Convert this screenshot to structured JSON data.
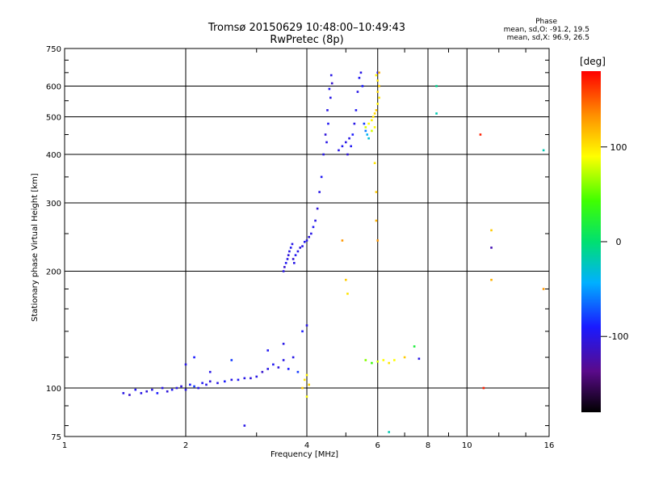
{
  "title": {
    "line1": "Tromsø 20150629 10:48:00–10:49:43",
    "line2": "RwPretec (8p)"
  },
  "stats": {
    "heading": "Phase",
    "o_line": "mean, sd,O: -91.2, 19.5",
    "x_line": "mean, sd,X: 96.9, 26.5"
  },
  "colorbar": {
    "title": "[deg]",
    "ticks": [
      {
        "value": 100,
        "label": "100"
      },
      {
        "value": 0,
        "label": "0"
      },
      {
        "value": -100,
        "label": "-100"
      }
    ],
    "range": [
      -180,
      180
    ]
  },
  "chart_data": {
    "type": "scatter",
    "xlabel": "Frequency [MHz]",
    "ylabel": "Stationary phase Virtual Height [km]",
    "x_scale": "log",
    "y_scale": "log",
    "xlim": [
      1,
      16
    ],
    "ylim": [
      75,
      750
    ],
    "x_ticks": [
      {
        "value": 1,
        "label": "1"
      },
      {
        "value": 2,
        "label": "2"
      },
      {
        "value": 4,
        "label": "4"
      },
      {
        "value": 6,
        "label": "6"
      },
      {
        "value": 8,
        "label": "8"
      },
      {
        "value": 10,
        "label": "10"
      },
      {
        "value": 16,
        "label": "16"
      }
    ],
    "y_ticks": [
      {
        "value": 75,
        "label": "75"
      },
      {
        "value": 100,
        "label": "100"
      },
      {
        "value": 200,
        "label": "200"
      },
      {
        "value": 300,
        "label": "300"
      },
      {
        "value": 400,
        "label": "400"
      },
      {
        "value": 500,
        "label": "500"
      },
      {
        "value": 600,
        "label": "600"
      },
      {
        "value": 750,
        "label": "750"
      }
    ],
    "grid": true,
    "colors": {
      "o_mode": "#1f3de0",
      "x_mode": "#f0d020"
    },
    "series": [
      {
        "mode": "O",
        "points": [
          [
            1.4,
            97,
            -100
          ],
          [
            1.45,
            96,
            -110
          ],
          [
            1.5,
            99,
            -95
          ],
          [
            1.55,
            97,
            -100
          ],
          [
            1.6,
            98,
            -105
          ],
          [
            1.65,
            99,
            -100
          ],
          [
            1.7,
            97,
            -90
          ],
          [
            1.75,
            100,
            -100
          ],
          [
            1.8,
            98,
            -105
          ],
          [
            1.85,
            99,
            -95
          ],
          [
            1.9,
            100,
            -100
          ],
          [
            1.95,
            101,
            -105
          ],
          [
            2.0,
            99,
            -100
          ],
          [
            2.05,
            102,
            -90
          ],
          [
            2.1,
            101,
            -80
          ],
          [
            2.15,
            100,
            -100
          ],
          [
            2.2,
            103,
            -95
          ],
          [
            2.25,
            102,
            -100
          ],
          [
            2.3,
            104,
            -105
          ],
          [
            2.4,
            103,
            -100
          ],
          [
            2.5,
            104,
            -90
          ],
          [
            2.6,
            105,
            -100
          ],
          [
            2.7,
            105,
            -95
          ],
          [
            2.8,
            106,
            -100
          ],
          [
            2.9,
            106,
            -105
          ],
          [
            3.0,
            107,
            -100
          ],
          [
            3.1,
            110,
            -110
          ],
          [
            3.2,
            112,
            -100
          ],
          [
            3.3,
            115,
            -95
          ],
          [
            3.4,
            113,
            -105
          ],
          [
            3.5,
            118,
            -100
          ],
          [
            3.6,
            112,
            -90
          ],
          [
            3.7,
            120,
            -100
          ],
          [
            3.8,
            110,
            -80
          ],
          [
            2.0,
            115,
            -100
          ],
          [
            2.1,
            120,
            -90
          ],
          [
            2.3,
            110,
            -100
          ],
          [
            2.6,
            118,
            -80
          ],
          [
            3.2,
            125,
            -95
          ],
          [
            3.5,
            130,
            -100
          ],
          [
            3.9,
            140,
            -90
          ],
          [
            4.0,
            145,
            -100
          ],
          [
            3.5,
            200,
            -100
          ],
          [
            3.52,
            205,
            -110
          ],
          [
            3.55,
            210,
            -95
          ],
          [
            3.58,
            215,
            -100
          ],
          [
            3.6,
            220,
            -105
          ],
          [
            3.62,
            225,
            -100
          ],
          [
            3.65,
            230,
            -95
          ],
          [
            3.68,
            235,
            -100
          ],
          [
            3.7,
            215,
            -110
          ],
          [
            3.72,
            210,
            -100
          ],
          [
            3.75,
            220,
            -95
          ],
          [
            3.8,
            225,
            -100
          ],
          [
            3.85,
            230,
            -105
          ],
          [
            3.9,
            232,
            -100
          ],
          [
            3.95,
            238,
            -95
          ],
          [
            4.0,
            240,
            -100
          ],
          [
            4.05,
            245,
            -105
          ],
          [
            4.1,
            250,
            -100
          ],
          [
            4.15,
            260,
            -95
          ],
          [
            4.2,
            270,
            -100
          ],
          [
            4.25,
            290,
            -105
          ],
          [
            4.3,
            320,
            -100
          ],
          [
            4.35,
            350,
            -95
          ],
          [
            4.4,
            400,
            -100
          ],
          [
            4.45,
            450,
            -105
          ],
          [
            4.5,
            520,
            -100
          ],
          [
            4.55,
            590,
            -95
          ],
          [
            4.6,
            640,
            -100
          ],
          [
            4.62,
            610,
            -110
          ],
          [
            4.58,
            560,
            -100
          ],
          [
            4.52,
            480,
            -95
          ],
          [
            4.48,
            430,
            -100
          ],
          [
            4.8,
            410,
            -100
          ],
          [
            4.9,
            420,
            -95
          ],
          [
            5.0,
            430,
            -100
          ],
          [
            5.05,
            400,
            -105
          ],
          [
            5.1,
            440,
            -100
          ],
          [
            5.15,
            420,
            -95
          ],
          [
            5.2,
            450,
            -90
          ],
          [
            5.25,
            480,
            -100
          ],
          [
            5.3,
            520,
            -95
          ],
          [
            5.35,
            580,
            -100
          ],
          [
            5.4,
            630,
            -95
          ],
          [
            5.45,
            650,
            -100
          ],
          [
            5.5,
            600,
            -90
          ],
          [
            5.55,
            480,
            -80
          ],
          [
            5.6,
            460,
            -60
          ],
          [
            5.65,
            450,
            -40
          ],
          [
            5.7,
            440,
            -30
          ],
          [
            6.0,
            650,
            -95
          ]
        ]
      },
      {
        "mode": "X",
        "points": [
          [
            3.9,
            100,
            110
          ],
          [
            3.95,
            105,
            100
          ],
          [
            4.0,
            108,
            95
          ],
          [
            4.05,
            102,
            105
          ],
          [
            4.0,
            95,
            90
          ],
          [
            4.9,
            240,
            130
          ],
          [
            5.0,
            190,
            110
          ],
          [
            5.05,
            175,
            100
          ],
          [
            5.6,
            470,
            80
          ],
          [
            5.7,
            480,
            90
          ],
          [
            5.8,
            490,
            95
          ],
          [
            5.85,
            500,
            100
          ],
          [
            5.9,
            510,
            105
          ],
          [
            5.95,
            520,
            110
          ],
          [
            6.0,
            540,
            95
          ],
          [
            6.05,
            560,
            100
          ],
          [
            6.0,
            580,
            105
          ],
          [
            6.05,
            600,
            110
          ],
          [
            6.0,
            620,
            100
          ],
          [
            5.95,
            640,
            95
          ],
          [
            6.05,
            650,
            120
          ],
          [
            5.9,
            470,
            90
          ],
          [
            5.8,
            460,
            80
          ],
          [
            5.9,
            380,
            100
          ],
          [
            5.95,
            320,
            110
          ],
          [
            5.95,
            270,
            120
          ],
          [
            6.0,
            240,
            130
          ],
          [
            5.6,
            118,
            60
          ],
          [
            5.8,
            116,
            40
          ],
          [
            6.0,
            117,
            80
          ],
          [
            6.2,
            118,
            90
          ],
          [
            6.4,
            116,
            100
          ],
          [
            6.6,
            118,
            90
          ],
          [
            7.0,
            120,
            110
          ],
          [
            7.4,
            128,
            20
          ],
          [
            7.6,
            119,
            -100
          ],
          [
            8.4,
            600,
            -10
          ],
          [
            8.4,
            510,
            -20
          ],
          [
            10.8,
            450,
            170
          ],
          [
            11.5,
            255,
            110
          ],
          [
            11.5,
            230,
            -120
          ],
          [
            11.5,
            190,
            120
          ],
          [
            15.5,
            180,
            130
          ],
          [
            15.5,
            410,
            -20
          ],
          [
            11.0,
            100,
            170
          ],
          [
            6.4,
            77,
            -20
          ],
          [
            2.8,
            80,
            -100
          ]
        ]
      }
    ]
  }
}
